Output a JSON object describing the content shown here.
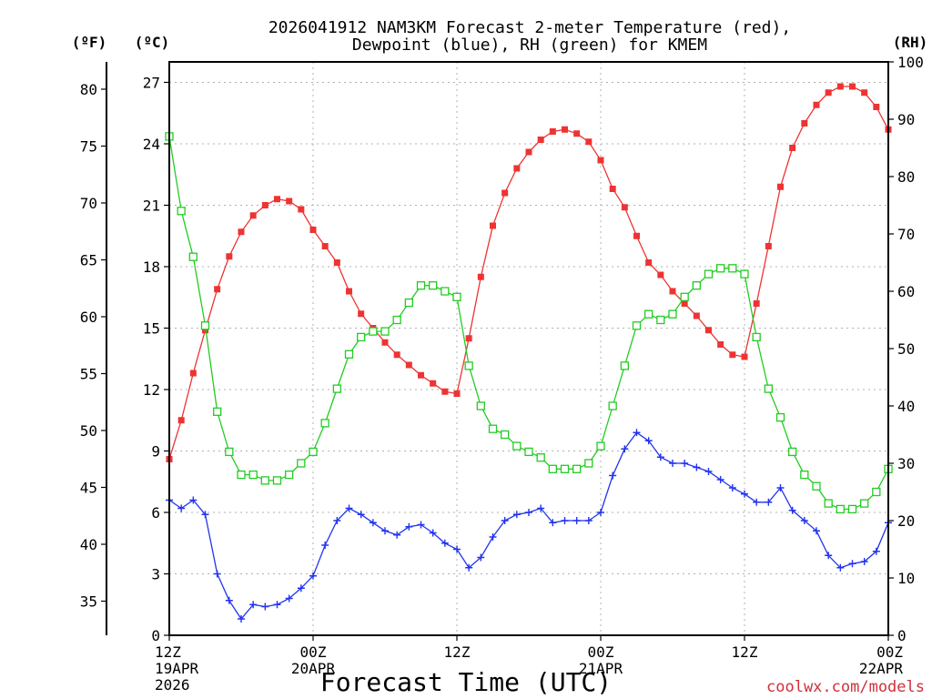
{
  "chart_data": {
    "type": "line",
    "title": [
      "2026041912 NAM3KM Forecast 2-meter Temperature (red),",
      "Dewpoint (blue), RH (green) for KMEM"
    ],
    "xlabel": "Forecast Time (UTC)",
    "credit": "coolwx.com/models",
    "units": {
      "fahrenheit": "(ºF)",
      "celsius": "(ºC)",
      "rh": "(RH)"
    },
    "x_hours": [
      0,
      60
    ],
    "x_ticks": [
      {
        "hour": 0,
        "lines": [
          "12Z",
          "19APR",
          "2026"
        ]
      },
      {
        "hour": 12,
        "lines": [
          "00Z",
          "20APR"
        ]
      },
      {
        "hour": 24,
        "lines": [
          "12Z"
        ]
      },
      {
        "hour": 36,
        "lines": [
          "00Z",
          "21APR"
        ]
      },
      {
        "hour": 48,
        "lines": [
          "12Z"
        ]
      },
      {
        "hour": 60,
        "lines": [
          "00Z",
          "22APR"
        ]
      }
    ],
    "celsius_axis": {
      "ylim": [
        0,
        28
      ],
      "ticks": [
        "0",
        "3",
        "6",
        "9",
        "12",
        "15",
        "18",
        "21",
        "24",
        "27"
      ]
    },
    "fahrenheit_axis": {
      "ylim": [
        32,
        82.4
      ],
      "ticks": [
        "35",
        "40",
        "45",
        "50",
        "55",
        "60",
        "65",
        "70",
        "75",
        "80"
      ]
    },
    "rh_axis": {
      "ylim": [
        0,
        100
      ],
      "ticks": [
        "0",
        "10",
        "20",
        "30",
        "40",
        "50",
        "60",
        "70",
        "80",
        "90",
        "100"
      ]
    },
    "series": [
      {
        "name": "2-meter Temperature",
        "axis": "celsius",
        "color": "#ee3333",
        "marker": "filled-square",
        "hours": [
          0,
          1,
          2,
          3,
          4,
          5,
          6,
          7,
          8,
          9,
          10,
          11,
          12,
          13,
          14,
          15,
          16,
          17,
          18,
          19,
          20,
          21,
          22,
          23,
          24,
          25,
          26,
          27,
          28,
          29,
          30,
          31,
          32,
          33,
          34,
          35,
          36,
          37,
          38,
          39,
          40,
          41,
          42,
          43,
          44,
          45,
          46,
          47,
          48,
          49,
          50,
          51,
          52,
          53,
          54,
          55,
          56,
          57,
          58,
          59,
          60
        ],
        "values": [
          8.6,
          10.5,
          12.8,
          14.9,
          16.9,
          18.5,
          19.7,
          20.5,
          21.0,
          21.3,
          21.2,
          20.8,
          19.8,
          19.0,
          18.2,
          16.8,
          15.7,
          15.0,
          14.3,
          13.7,
          13.2,
          12.7,
          12.3,
          11.9,
          11.8,
          14.5,
          17.5,
          20.0,
          21.6,
          22.8,
          23.6,
          24.2,
          24.6,
          24.7,
          24.5,
          24.1,
          23.2,
          21.8,
          20.9,
          19.5,
          18.2,
          17.6,
          16.8,
          16.2,
          15.6,
          14.9,
          14.2,
          13.7,
          13.6,
          16.2,
          19.0,
          21.9,
          23.8,
          25.0,
          25.9,
          26.5,
          26.8,
          26.8,
          26.5,
          25.8,
          24.7
        ]
      },
      {
        "name": "Dewpoint",
        "axis": "celsius",
        "color": "#2233ee",
        "marker": "plus",
        "hours": [
          0,
          1,
          2,
          3,
          4,
          5,
          6,
          7,
          8,
          9,
          10,
          11,
          12,
          13,
          14,
          15,
          16,
          17,
          18,
          19,
          20,
          21,
          22,
          23,
          24,
          25,
          26,
          27,
          28,
          29,
          30,
          31,
          32,
          33,
          34,
          35,
          36,
          37,
          38,
          39,
          40,
          41,
          42,
          43,
          44,
          45,
          46,
          47,
          48,
          49,
          50,
          51,
          52,
          53,
          54,
          55,
          56,
          57,
          58,
          59,
          60
        ],
        "values": [
          6.6,
          6.2,
          6.6,
          5.9,
          3.0,
          1.7,
          0.8,
          1.5,
          1.4,
          1.5,
          1.8,
          2.3,
          2.9,
          4.4,
          5.6,
          6.2,
          5.9,
          5.5,
          5.1,
          4.9,
          5.3,
          5.4,
          5.0,
          4.5,
          4.2,
          3.3,
          3.8,
          4.8,
          5.6,
          5.9,
          6.0,
          6.2,
          5.5,
          5.6,
          5.6,
          5.6,
          6.0,
          7.8,
          9.1,
          9.9,
          9.5,
          8.7,
          8.4,
          8.4,
          8.2,
          8.0,
          7.6,
          7.2,
          6.9,
          6.5,
          6.5,
          7.2,
          6.1,
          5.6,
          5.1,
          3.9,
          3.3,
          3.5,
          3.6,
          4.1,
          5.5
        ]
      },
      {
        "name": "RH",
        "axis": "rh",
        "color": "#22cc22",
        "marker": "open-square",
        "hours": [
          0,
          1,
          2,
          3,
          4,
          5,
          6,
          7,
          8,
          9,
          10,
          11,
          12,
          13,
          14,
          15,
          16,
          17,
          18,
          19,
          20,
          21,
          22,
          23,
          24,
          25,
          26,
          27,
          28,
          29,
          30,
          31,
          32,
          33,
          34,
          35,
          36,
          37,
          38,
          39,
          40,
          41,
          42,
          43,
          44,
          45,
          46,
          47,
          48,
          49,
          50,
          51,
          52,
          53,
          54,
          55,
          56,
          57,
          58,
          59,
          60
        ],
        "values": [
          87,
          74,
          66,
          54,
          39,
          32,
          28,
          28,
          27,
          27,
          28,
          30,
          32,
          37,
          43,
          49,
          52,
          53,
          53,
          55,
          58,
          61,
          61,
          60,
          59,
          47,
          40,
          36,
          35,
          33,
          32,
          31,
          29,
          29,
          29,
          30,
          33,
          40,
          47,
          54,
          56,
          55,
          56,
          59,
          61,
          63,
          64,
          64,
          63,
          52,
          43,
          38,
          32,
          28,
          26,
          23,
          22,
          22,
          23,
          25,
          29
        ]
      }
    ]
  }
}
